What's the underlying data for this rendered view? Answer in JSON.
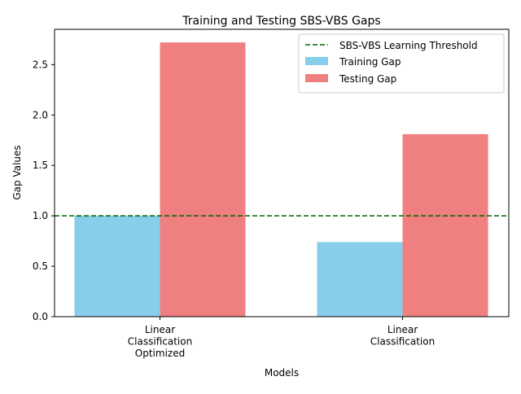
{
  "chart_data": {
    "type": "bar",
    "title": "Training and Testing SBS-VBS Gaps",
    "xlabel": "Models",
    "ylabel": "Gap Values",
    "categories": [
      [
        "Linear",
        "Classification",
        "Optimized"
      ],
      [
        "Linear",
        "Classification"
      ]
    ],
    "series": [
      {
        "name": "Training Gap",
        "values": [
          1.0,
          0.74
        ],
        "color": "#87CEEB"
      },
      {
        "name": "Testing Gap",
        "values": [
          2.72,
          1.81
        ],
        "color": "#F08080"
      }
    ],
    "threshold": {
      "name": "SBS-VBS Learning Threshold",
      "value": 1.0,
      "color": "#006400",
      "style": "dashed"
    },
    "ylim": [
      0,
      2.85
    ],
    "yticks": [
      "0.0",
      "0.5",
      "1.0",
      "1.5",
      "2.0",
      "2.5"
    ],
    "legend": "top-right",
    "grid": false
  }
}
